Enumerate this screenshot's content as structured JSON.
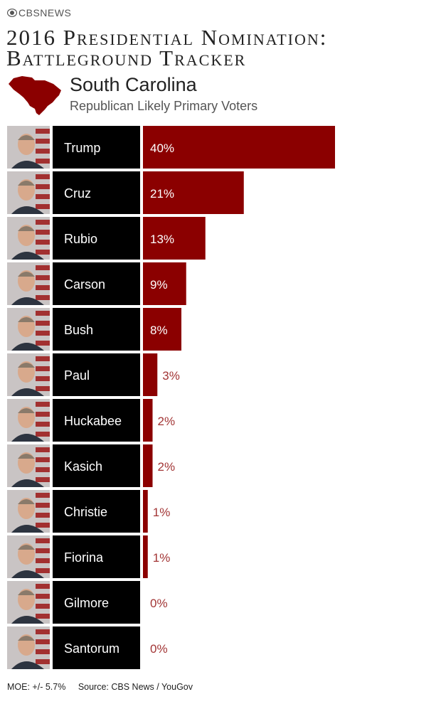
{
  "brand": "CBSNEWS",
  "title_line1": "2016 Presidential Nomination:",
  "title_line2": "Battleground Tracker",
  "state": "South Carolina",
  "subtitle": "Republican Likely Primary Voters",
  "footer_moe": "MOE: +/- 5.7%",
  "footer_source": "Source: CBS News / YouGov",
  "colors": {
    "bar": "#8b0000",
    "label_box": "#000000",
    "outside_label": "#a23535"
  },
  "chart_data": {
    "type": "bar",
    "orientation": "horizontal",
    "categories": [
      "Trump",
      "Cruz",
      "Rubio",
      "Carson",
      "Bush",
      "Paul",
      "Huckabee",
      "Kasich",
      "Christie",
      "Fiorina",
      "Gilmore",
      "Santorum"
    ],
    "values": [
      40,
      21,
      13,
      9,
      8,
      3,
      2,
      2,
      1,
      1,
      0,
      0
    ],
    "value_labels": [
      "40%",
      "21%",
      "13%",
      "9%",
      "8%",
      "3%",
      "2%",
      "2%",
      "1%",
      "1%",
      "0%",
      "0%"
    ],
    "unit": "%"
  }
}
